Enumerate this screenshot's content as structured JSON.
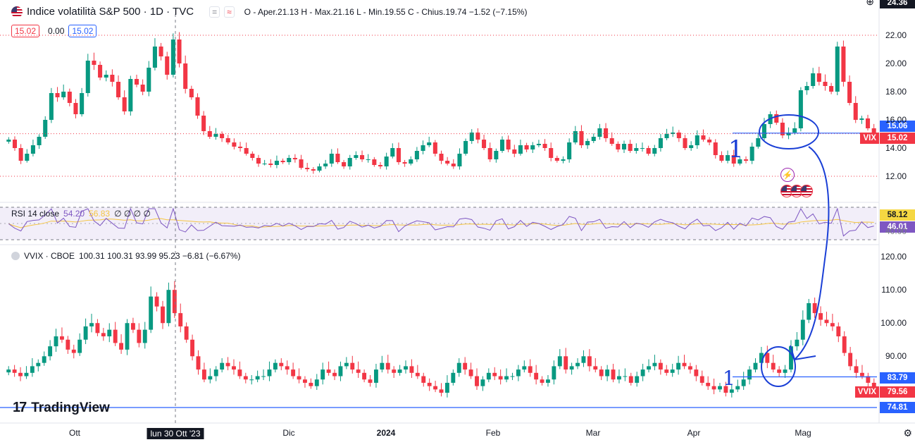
{
  "header": {
    "title": "Indice volatilità S&P 500 · 1D · TVC",
    "ohlc": "O - Aper.21.13  H - Max.21.16  L - Min.19.55  C - Chius.19.74  −1.52 (−7.15%)",
    "price_box_1": "15.02",
    "price_box_mid": "0.00",
    "price_box_2": "15.02"
  },
  "rsi_header": {
    "label": "RSI 14 close",
    "value_1": "54.20",
    "value_2": "56.83",
    "extras": "∅ ∅ ∅ ∅"
  },
  "vvix_header": {
    "label": "VVIX · CBOE",
    "ohlc": "100.31  100.31  93.99  95.23  −6.81 (−6.67%)"
  },
  "brand": "TradingView",
  "top_right_value": "24.36",
  "right_tags": {
    "vix_line": "15.06",
    "vix_label": "VIX",
    "vix_value": "15.02",
    "rsi_1": "58.12",
    "rsi_2": "46.01",
    "rsi_partial": "40.00",
    "vvix_line": "83.79",
    "vvix_label": "VVIX",
    "vvix_value": "79.56",
    "vvix_low": "74.81"
  },
  "colors": {
    "up": "#089981",
    "down": "#f23645",
    "annotation": "#1a3fd6",
    "rsi_line": "#7e57c2",
    "rsi_ma": "#f5c542"
  },
  "chart_data": [
    {
      "type": "candlestick",
      "series_name": "VIX",
      "y_ticks": [
        "22.00",
        "20.00",
        "18.00",
        "16.00",
        "14.00",
        "12.00"
      ],
      "ylim": [
        11,
        23.5
      ],
      "closes": [
        14.6,
        14.0,
        13.1,
        13.6,
        14.2,
        14.8,
        16.0,
        17.9,
        17.6,
        18.0,
        17.2,
        16.4,
        17.9,
        20.2,
        19.9,
        19.0,
        19.2,
        18.7,
        17.6,
        16.6,
        18.9,
        18.5,
        18.0,
        19.7,
        21.2,
        20.5,
        19.2,
        21.7,
        20.0,
        18.2,
        17.6,
        16.3,
        15.2,
        14.8,
        15.0,
        14.7,
        14.4,
        14.1,
        14.0,
        13.6,
        13.3,
        12.9,
        12.9,
        12.8,
        13.1,
        13.0,
        13.3,
        13.2,
        12.6,
        12.5,
        12.4,
        12.7,
        12.9,
        13.6,
        13.0,
        12.7,
        13.3,
        13.5,
        13.2,
        13.2,
        12.8,
        12.7,
        13.4,
        14.0,
        13.0,
        12.9,
        13.2,
        13.8,
        14.2,
        14.4,
        13.6,
        13.1,
        12.9,
        12.7,
        13.6,
        14.5,
        15.1,
        14.6,
        14.0,
        13.2,
        13.8,
        14.6,
        13.9,
        13.6,
        14.2,
        13.9,
        14.2,
        14.3,
        14.0,
        13.3,
        13.1,
        13.2,
        14.4,
        15.2,
        14.2,
        14.5,
        14.8,
        15.4,
        14.7,
        14.3,
        13.9,
        14.3,
        13.8,
        14.0,
        14.0,
        13.6,
        14.0,
        14.7,
        15.0,
        15.1,
        14.7,
        14.0,
        14.2,
        14.9,
        14.6,
        14.4,
        13.5,
        13.1,
        13.5,
        12.9,
        13.2,
        13.1,
        14.1,
        14.7,
        15.7,
        16.4,
        15.8,
        14.9,
        15.1,
        15.4,
        18.1,
        18.4,
        19.3,
        18.7,
        18.4,
        18.0,
        21.2,
        18.7,
        17.2,
        16.0,
        16.1,
        15.4,
        15.0
      ],
      "red_box": {
        "top": 22.0,
        "bottom": 15.2
      }
    },
    {
      "type": "line",
      "series_name": "RSI",
      "y_ticks": [
        "40.00"
      ],
      "ylim": [
        30,
        75
      ]
    },
    {
      "type": "candlestick",
      "series_name": "VVIX",
      "y_ticks": [
        "120.00",
        "110.00",
        "100.00",
        "90.00"
      ],
      "ylim": [
        72,
        123
      ],
      "closes": [
        86,
        85,
        84,
        85,
        87,
        88,
        90,
        93,
        96,
        95,
        92,
        91,
        95,
        99,
        100,
        97,
        96,
        98,
        94,
        92,
        100,
        98,
        94,
        98,
        108,
        105,
        100,
        110,
        103,
        99,
        95,
        90,
        86,
        83,
        84,
        86,
        88,
        87,
        86,
        84,
        83,
        83,
        84,
        84,
        86,
        88,
        87,
        86,
        84,
        83,
        82,
        81,
        83,
        86,
        85,
        84,
        87,
        88,
        86,
        85,
        83,
        82,
        86,
        88,
        86,
        85,
        86,
        87,
        85,
        84,
        82,
        81,
        80,
        79,
        82,
        85,
        88,
        86,
        84,
        81,
        83,
        85,
        84,
        83,
        84,
        84,
        86,
        87,
        85,
        83,
        82,
        83,
        87,
        90,
        86,
        87,
        88,
        90,
        87,
        86,
        84,
        86,
        83,
        84,
        84,
        82,
        84,
        86,
        87,
        88,
        86,
        85,
        86,
        88,
        87,
        86,
        84,
        82,
        81,
        80,
        81,
        79,
        80,
        81,
        83,
        86,
        88,
        91,
        88,
        86,
        85,
        86,
        93,
        95,
        101,
        106,
        103,
        101,
        100,
        99,
        96,
        91,
        87,
        85,
        84,
        82,
        80
      ],
      "x_ticks": [
        "Ott",
        "lun 30 Ott '23",
        "Dic",
        "2024",
        "Feb",
        "Mar",
        "Apr",
        "Mag"
      ]
    }
  ],
  "annotations": {
    "label_1_top": "1",
    "label_1_bottom": "1"
  }
}
